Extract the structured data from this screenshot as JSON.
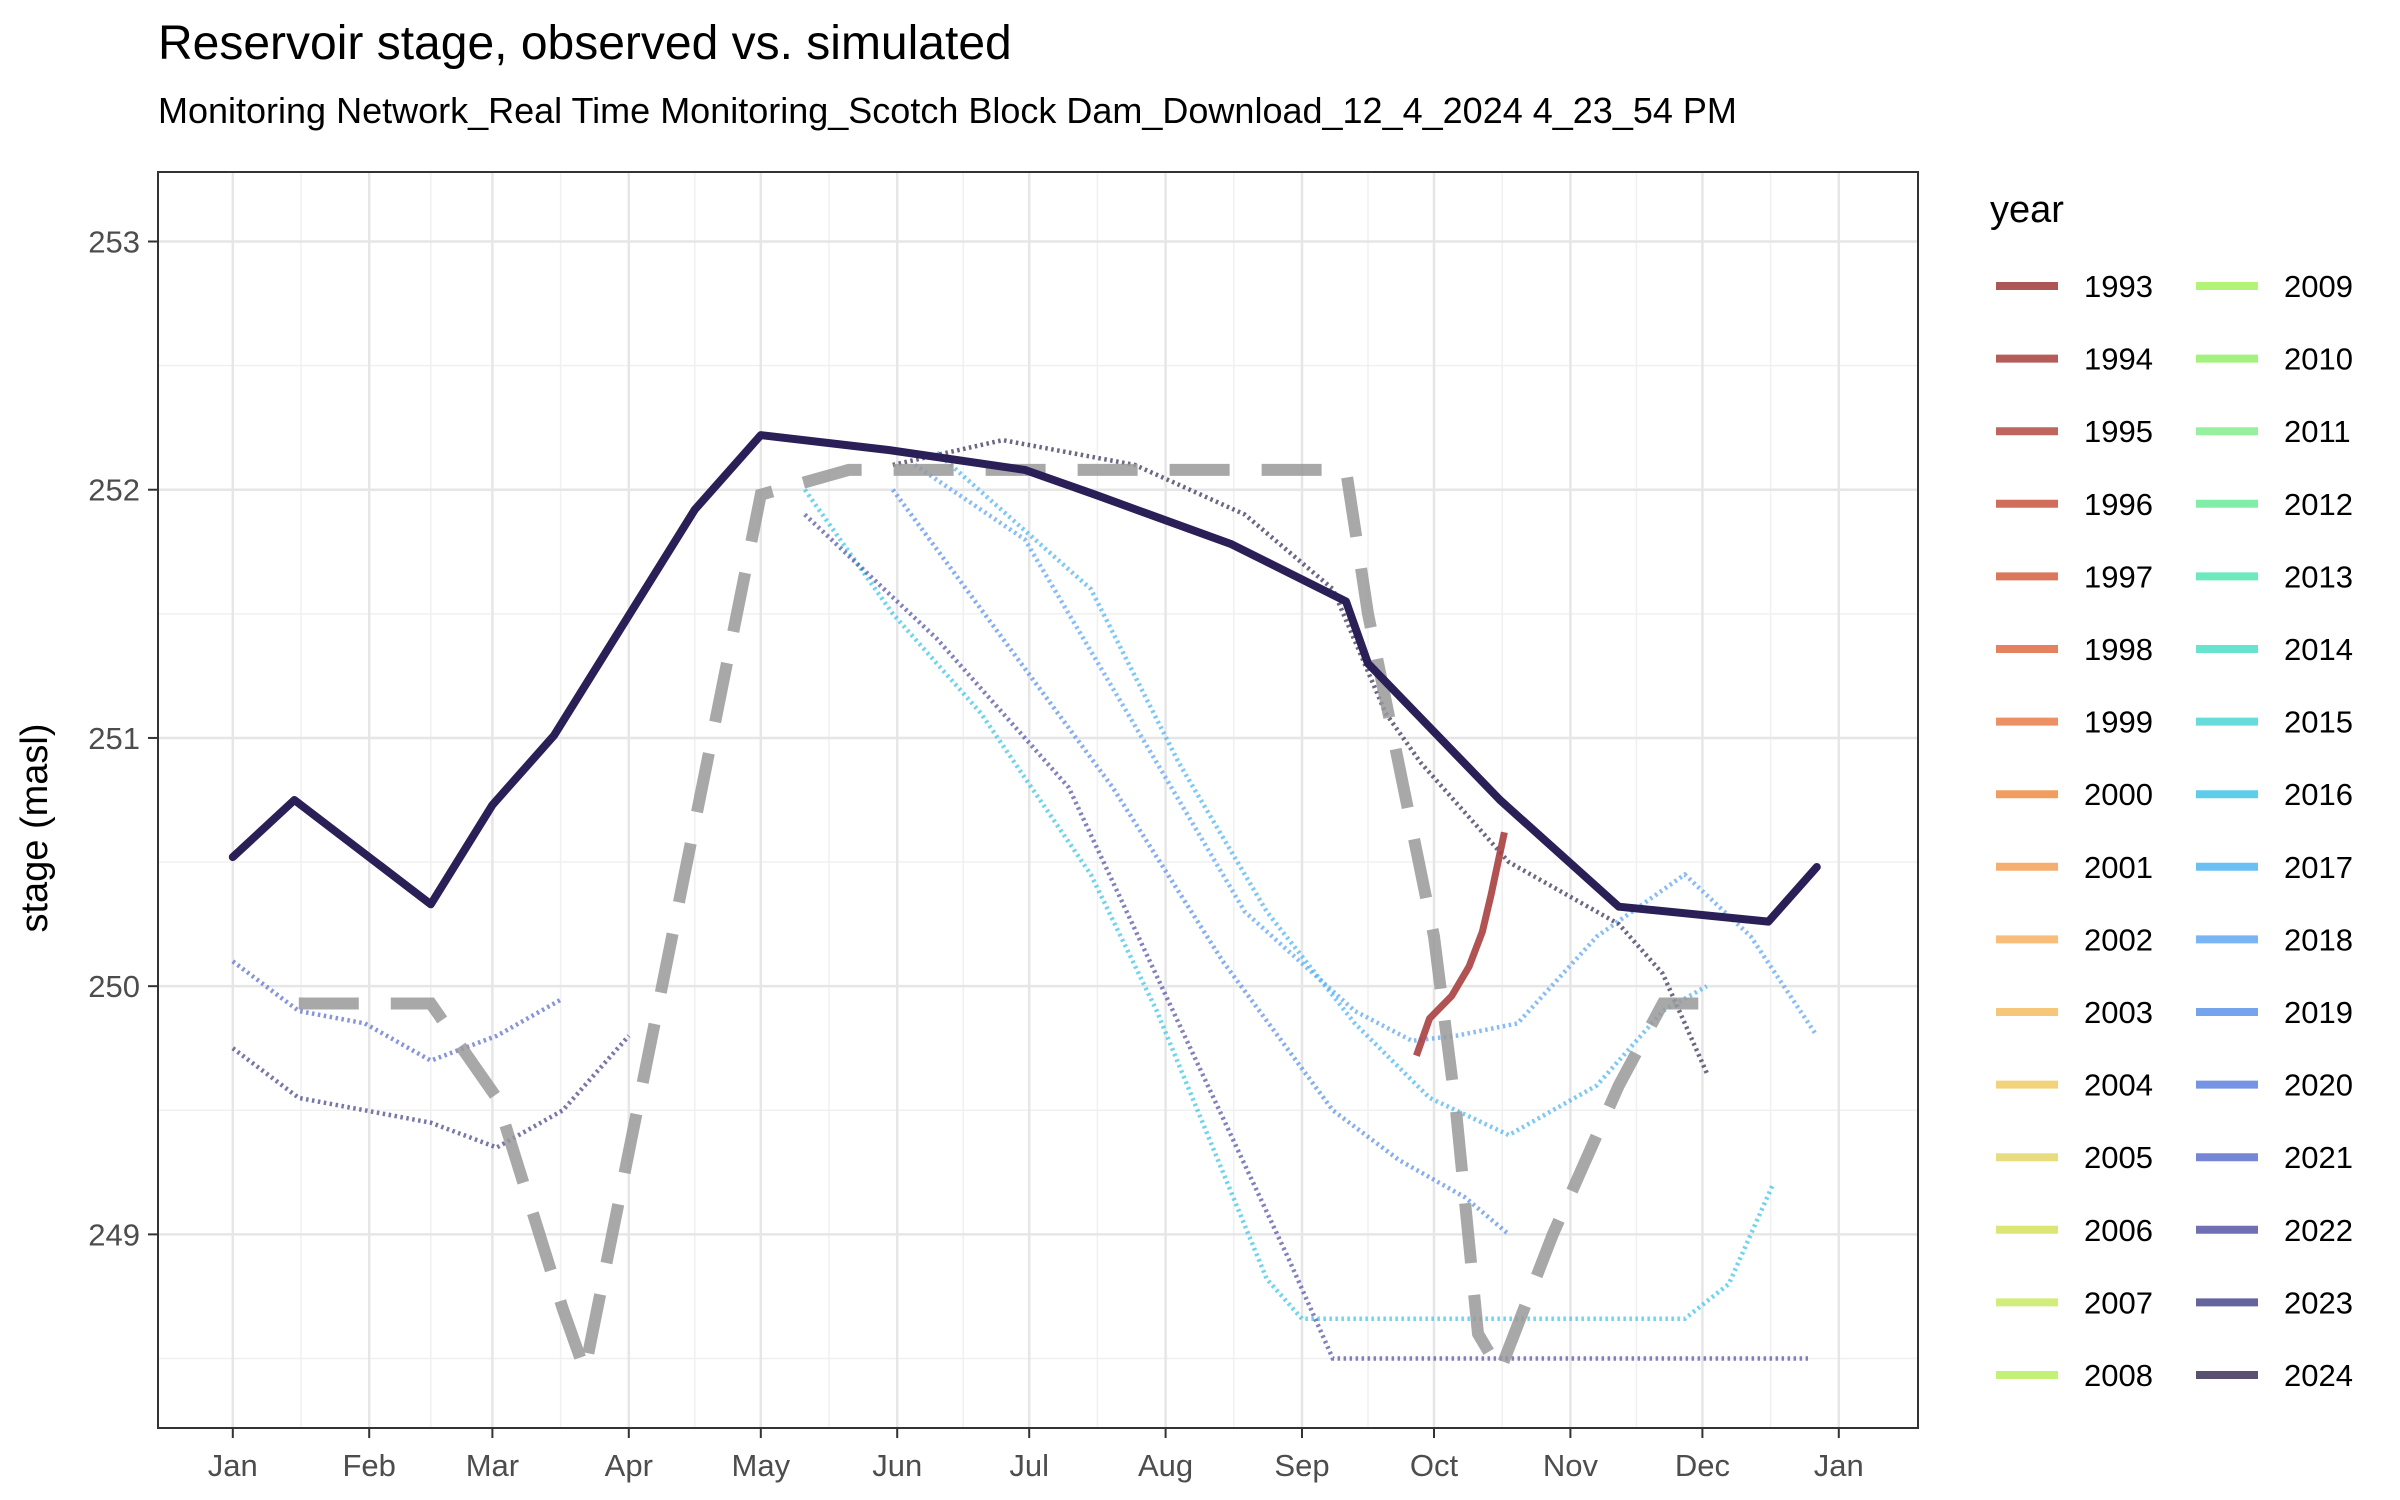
{
  "title": "Reservoir stage, observed vs. simulated",
  "subtitle": "Monitoring Network_Real Time Monitoring_Scotch Block Dam_Download_12_4_2024 4_23_54 PM",
  "chart_data": {
    "type": "line",
    "ylabel": "stage (masl)",
    "xlabel": "",
    "x_ticks": [
      "Jan",
      "Feb",
      "Mar",
      "Apr",
      "May",
      "Jun",
      "Jul",
      "Aug",
      "Sep",
      "Oct",
      "Nov",
      "Dec",
      "Jan"
    ],
    "y_ticks": [
      249,
      250,
      251,
      252,
      253
    ],
    "xlim_days": [
      -17,
      383
    ],
    "ylim": [
      248.22,
      253.28
    ],
    "grid": true,
    "legend": {
      "title": "year",
      "placement": "right",
      "entries": [
        {
          "year": "1993",
          "color": "#9E3A38"
        },
        {
          "year": "1994",
          "color": "#A8413C"
        },
        {
          "year": "1995",
          "color": "#B54A42"
        },
        {
          "year": "1996",
          "color": "#C8553F"
        },
        {
          "year": "1997",
          "color": "#D5603E"
        },
        {
          "year": "1998",
          "color": "#E06D45"
        },
        {
          "year": "1999",
          "color": "#EA7E4A"
        },
        {
          "year": "2000",
          "color": "#F08C45"
        },
        {
          "year": "2001",
          "color": "#F59F58"
        },
        {
          "year": "2002",
          "color": "#F7B262"
        },
        {
          "year": "2003",
          "color": "#F5BE61"
        },
        {
          "year": "2004",
          "color": "#F1CC63"
        },
        {
          "year": "2005",
          "color": "#E5D868"
        },
        {
          "year": "2006",
          "color": "#D7E25E"
        },
        {
          "year": "2007",
          "color": "#CCEB66"
        },
        {
          "year": "2008",
          "color": "#B9EF5F"
        },
        {
          "year": "2009",
          "color": "#A6F25D"
        },
        {
          "year": "2010",
          "color": "#92F067"
        },
        {
          "year": "2011",
          "color": "#86EE8C"
        },
        {
          "year": "2012",
          "color": "#6CEC9A"
        },
        {
          "year": "2013",
          "color": "#55E6B2"
        },
        {
          "year": "2014",
          "color": "#4EE0C6"
        },
        {
          "year": "2015",
          "color": "#4ED6D8"
        },
        {
          "year": "2016",
          "color": "#41C5E6"
        },
        {
          "year": "2017",
          "color": "#52B6F2"
        },
        {
          "year": "2018",
          "color": "#62A7F4"
        },
        {
          "year": "2019",
          "color": "#5D93EC"
        },
        {
          "year": "2020",
          "color": "#5E82DF"
        },
        {
          "year": "2021",
          "color": "#5F70CF"
        },
        {
          "year": "2022",
          "color": "#5757A8"
        },
        {
          "year": "2023",
          "color": "#4B4A8C"
        },
        {
          "year": "2024",
          "color": "#3E3358"
        }
      ]
    },
    "series": [
      {
        "name": "",
        "role": "simulated-main",
        "color": "#2A1F57",
        "x": [
          0,
          14,
          45,
          59,
          73,
          105,
          120,
          149,
          180,
          196,
          227,
          253,
          258,
          288,
          315,
          349,
          360
        ],
        "y": [
          250.52,
          250.75,
          250.33,
          250.73,
          251.01,
          251.92,
          252.22,
          252.16,
          252.08,
          251.98,
          251.78,
          251.55,
          251.3,
          250.75,
          250.32,
          250.26,
          250.48
        ]
      },
      {
        "name": "",
        "role": "simulated-dashed",
        "color": "#999999",
        "x": [
          15,
          45,
          60,
          75,
          80,
          120,
          140,
          160,
          200,
          218,
          228,
          253,
          258,
          273,
          278,
          283,
          288,
          300,
          315,
          325,
          340
        ],
        "y": [
          249.93,
          249.93,
          249.55,
          248.7,
          248.45,
          251.98,
          252.08,
          252.08,
          252.08,
          252.08,
          252.08,
          252.08,
          251.5,
          250.2,
          249.5,
          248.6,
          248.45,
          249.0,
          249.6,
          249.93,
          249.93
        ]
      },
      {
        "name": "1993",
        "role": "observed-line",
        "color": "#A84040",
        "x": [
          269,
          272,
          277,
          281,
          284,
          286,
          289
        ],
        "y": [
          249.72,
          249.87,
          249.96,
          250.08,
          250.22,
          250.37,
          250.62
        ]
      },
      {
        "name": "2016",
        "role": "observed-trace",
        "color": "#41C5E6",
        "x": [
          130,
          150,
          170,
          195,
          210,
          235,
          243,
          330,
          340,
          350
        ],
        "y": [
          252.0,
          251.5,
          251.1,
          250.45,
          249.9,
          248.82,
          248.66,
          248.66,
          248.8,
          249.2
        ]
      },
      {
        "name": "2022",
        "role": "observed-trace",
        "color": "#5757A8",
        "x": [
          130,
          160,
          190,
          215,
          240,
          250,
          260,
          280,
          300,
          330,
          358
        ],
        "y": [
          251.9,
          251.4,
          250.8,
          249.85,
          248.9,
          248.5,
          248.5,
          248.5,
          248.5,
          248.5,
          248.5
        ]
      },
      {
        "name": "2019",
        "role": "observed-trace",
        "color": "#5D93EC",
        "x": [
          150,
          175,
          200,
          225,
          250,
          265,
          280,
          290
        ],
        "y": [
          252.0,
          251.4,
          250.8,
          250.1,
          249.5,
          249.3,
          249.15,
          249.0
        ]
      },
      {
        "name": "2018",
        "role": "observed-trace",
        "color": "#62A7F4",
        "x": [
          155,
          180,
          200,
          230,
          255,
          268,
          278,
          292,
          310,
          330,
          345,
          360
        ],
        "y": [
          252.1,
          251.8,
          251.2,
          250.3,
          249.9,
          249.78,
          249.8,
          249.85,
          250.2,
          250.45,
          250.2,
          249.8
        ]
      },
      {
        "name": "2017",
        "role": "observed-trace",
        "color": "#52B6F2",
        "x": [
          160,
          195,
          215,
          235,
          255,
          272,
          290,
          310,
          325,
          335
        ],
        "y": [
          252.15,
          251.6,
          250.9,
          250.3,
          249.85,
          249.55,
          249.4,
          249.6,
          249.9,
          250.0
        ]
      },
      {
        "name": "2024",
        "role": "observed-trace",
        "color": "#3E3358",
        "x": [
          150,
          175,
          205,
          230,
          250,
          262,
          270,
          280,
          290,
          300,
          315,
          325,
          335
        ],
        "y": [
          252.1,
          252.2,
          252.1,
          251.9,
          251.6,
          251.1,
          250.9,
          250.7,
          250.5,
          250.4,
          250.25,
          250.05,
          249.65
        ]
      },
      {
        "name": "2023",
        "role": "observed-trace",
        "color": "#4B4A8C",
        "x": [
          0,
          15,
          30,
          45,
          60,
          75,
          90
        ],
        "y": [
          249.75,
          249.55,
          249.5,
          249.45,
          249.35,
          249.5,
          249.8
        ]
      },
      {
        "name": "2021",
        "role": "observed-trace",
        "color": "#5F70CF",
        "x": [
          0,
          15,
          30,
          45,
          60,
          75
        ],
        "y": [
          250.1,
          249.9,
          249.85,
          249.7,
          249.8,
          249.95
        ]
      }
    ]
  }
}
